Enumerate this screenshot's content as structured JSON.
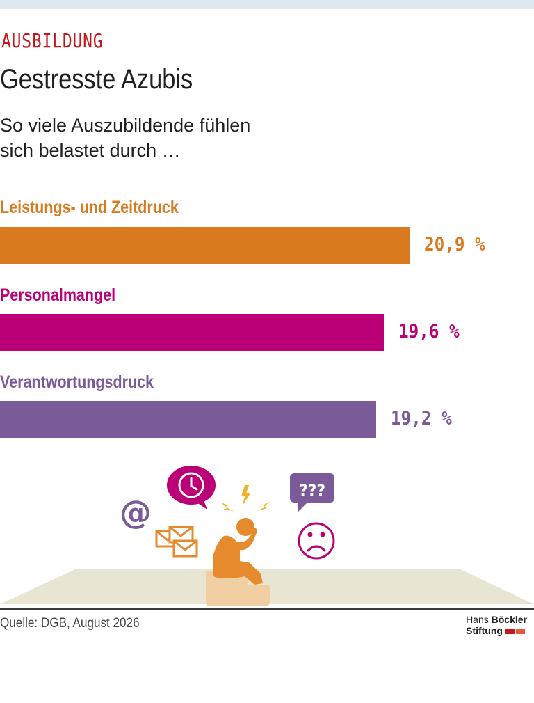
{
  "header": {
    "kicker": "AUSBILDUNG",
    "title": "Gestresste Azubis",
    "subtitle_line1": "So viele Auszubildende fühlen",
    "subtitle_line2": "sich belastet durch …"
  },
  "chart_data": {
    "type": "bar",
    "orientation": "horizontal",
    "categories": [
      "Leistungs- und Zeitdruck",
      "Personalmangel",
      "Verantwortungsdruck"
    ],
    "values": [
      20.9,
      19.6,
      19.2
    ],
    "value_labels": [
      "20,9 %",
      "19,6 %",
      "19,2 %"
    ],
    "colors": [
      "#d97a1e",
      "#bb0077",
      "#7b5a9a"
    ],
    "unit": "%"
  },
  "illustration": {
    "question_text": "???"
  },
  "footer": {
    "source": "Quelle: DGB, August 2026",
    "logo_line1_a": "Hans",
    "logo_line1_b": "Böckler",
    "logo_line2": "Stiftung"
  }
}
